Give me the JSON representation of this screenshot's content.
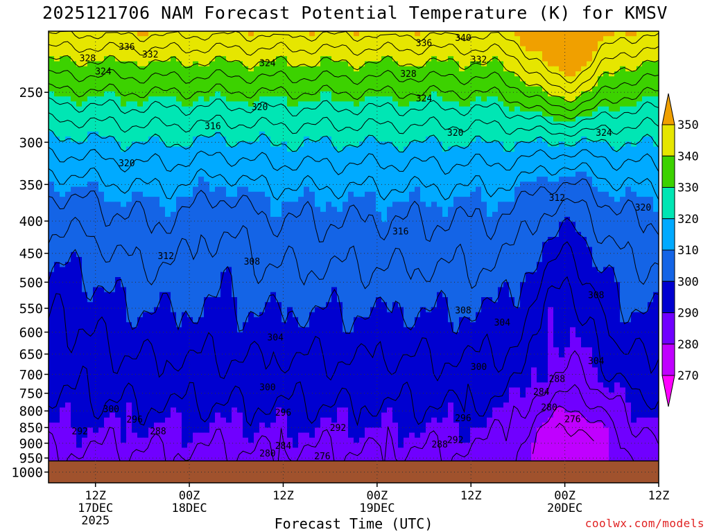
{
  "chart_data": {
    "type": "heatmap",
    "title": "2025121706 NAM Forecast Potential Temperature (K) for KMSV",
    "xlabel": "Forecast Time (UTC)",
    "ylabel": "",
    "credit": "coolwx.com/models",
    "y_axis": {
      "scale": "log",
      "ticks": [
        250,
        300,
        350,
        400,
        450,
        500,
        550,
        600,
        650,
        700,
        750,
        800,
        850,
        900,
        950,
        1000
      ],
      "range": [
        200,
        1040
      ]
    },
    "x_axis": {
      "range_hours": [
        6,
        84
      ],
      "ticks": [
        {
          "hour": 12,
          "label": "12Z",
          "sub": [
            "17DEC",
            "2025"
          ]
        },
        {
          "hour": 24,
          "label": "00Z",
          "sub": [
            "18DEC"
          ]
        },
        {
          "hour": 36,
          "label": "12Z",
          "sub": []
        },
        {
          "hour": 48,
          "label": "00Z",
          "sub": [
            "19DEC"
          ]
        },
        {
          "hour": 60,
          "label": "12Z",
          "sub": []
        },
        {
          "hour": 72,
          "label": "00Z",
          "sub": [
            "20DEC"
          ]
        },
        {
          "hour": 84,
          "label": "12Z",
          "sub": []
        }
      ]
    },
    "colorbar": {
      "levels": [
        270,
        280,
        290,
        300,
        310,
        320,
        330,
        340,
        350
      ],
      "colors": [
        "#ff00ff",
        "#c000ff",
        "#7000ff",
        "#0000d0",
        "#1464e6",
        "#00aaff",
        "#00e6b4",
        "#3cd200",
        "#e6e600",
        "#f0a000"
      ]
    },
    "surface_pressure": 960,
    "contour_labels": [
      {
        "text": "336",
        "hour": 16,
        "p": 212
      },
      {
        "text": "332",
        "hour": 19,
        "p": 218
      },
      {
        "text": "328",
        "hour": 11,
        "p": 221
      },
      {
        "text": "324",
        "hour": 13,
        "p": 232
      },
      {
        "text": "324",
        "hour": 34,
        "p": 225
      },
      {
        "text": "336",
        "hour": 54,
        "p": 209
      },
      {
        "text": "340",
        "hour": 59,
        "p": 205
      },
      {
        "text": "332",
        "hour": 61,
        "p": 222
      },
      {
        "text": "328",
        "hour": 52,
        "p": 234
      },
      {
        "text": "324",
        "hour": 54,
        "p": 256
      },
      {
        "text": "320",
        "hour": 33,
        "p": 264
      },
      {
        "text": "316",
        "hour": 27,
        "p": 283
      },
      {
        "text": "320",
        "hour": 16,
        "p": 324
      },
      {
        "text": "320",
        "hour": 58,
        "p": 290
      },
      {
        "text": "324",
        "hour": 77,
        "p": 290
      },
      {
        "text": "320",
        "hour": 82,
        "p": 381
      },
      {
        "text": "312",
        "hour": 71,
        "p": 368
      },
      {
        "text": "316",
        "hour": 51,
        "p": 416
      },
      {
        "text": "312",
        "hour": 21,
        "p": 455
      },
      {
        "text": "308",
        "hour": 32,
        "p": 464
      },
      {
        "text": "308",
        "hour": 59,
        "p": 555
      },
      {
        "text": "308",
        "hour": 76,
        "p": 525
      },
      {
        "text": "304",
        "hour": 64,
        "p": 580
      },
      {
        "text": "304",
        "hour": 35,
        "p": 612
      },
      {
        "text": "304",
        "hour": 76,
        "p": 667
      },
      {
        "text": "300",
        "hour": 61,
        "p": 682
      },
      {
        "text": "300",
        "hour": 34,
        "p": 735
      },
      {
        "text": "288",
        "hour": 71,
        "p": 713
      },
      {
        "text": "284",
        "hour": 69,
        "p": 747
      },
      {
        "text": "280",
        "hour": 70,
        "p": 790
      },
      {
        "text": "276",
        "hour": 73,
        "p": 825
      },
      {
        "text": "300",
        "hour": 14,
        "p": 795
      },
      {
        "text": "296",
        "hour": 17,
        "p": 826
      },
      {
        "text": "296",
        "hour": 36,
        "p": 806
      },
      {
        "text": "296",
        "hour": 59,
        "p": 822
      },
      {
        "text": "292",
        "hour": 43,
        "p": 852
      },
      {
        "text": "292",
        "hour": 10,
        "p": 862
      },
      {
        "text": "288",
        "hour": 20,
        "p": 863
      },
      {
        "text": "288",
        "hour": 56,
        "p": 905
      },
      {
        "text": "292",
        "hour": 58,
        "p": 890
      },
      {
        "text": "284",
        "hour": 36,
        "p": 910
      },
      {
        "text": "280",
        "hour": 34,
        "p": 935
      },
      {
        "text": "276",
        "hour": 41,
        "p": 945
      }
    ]
  }
}
